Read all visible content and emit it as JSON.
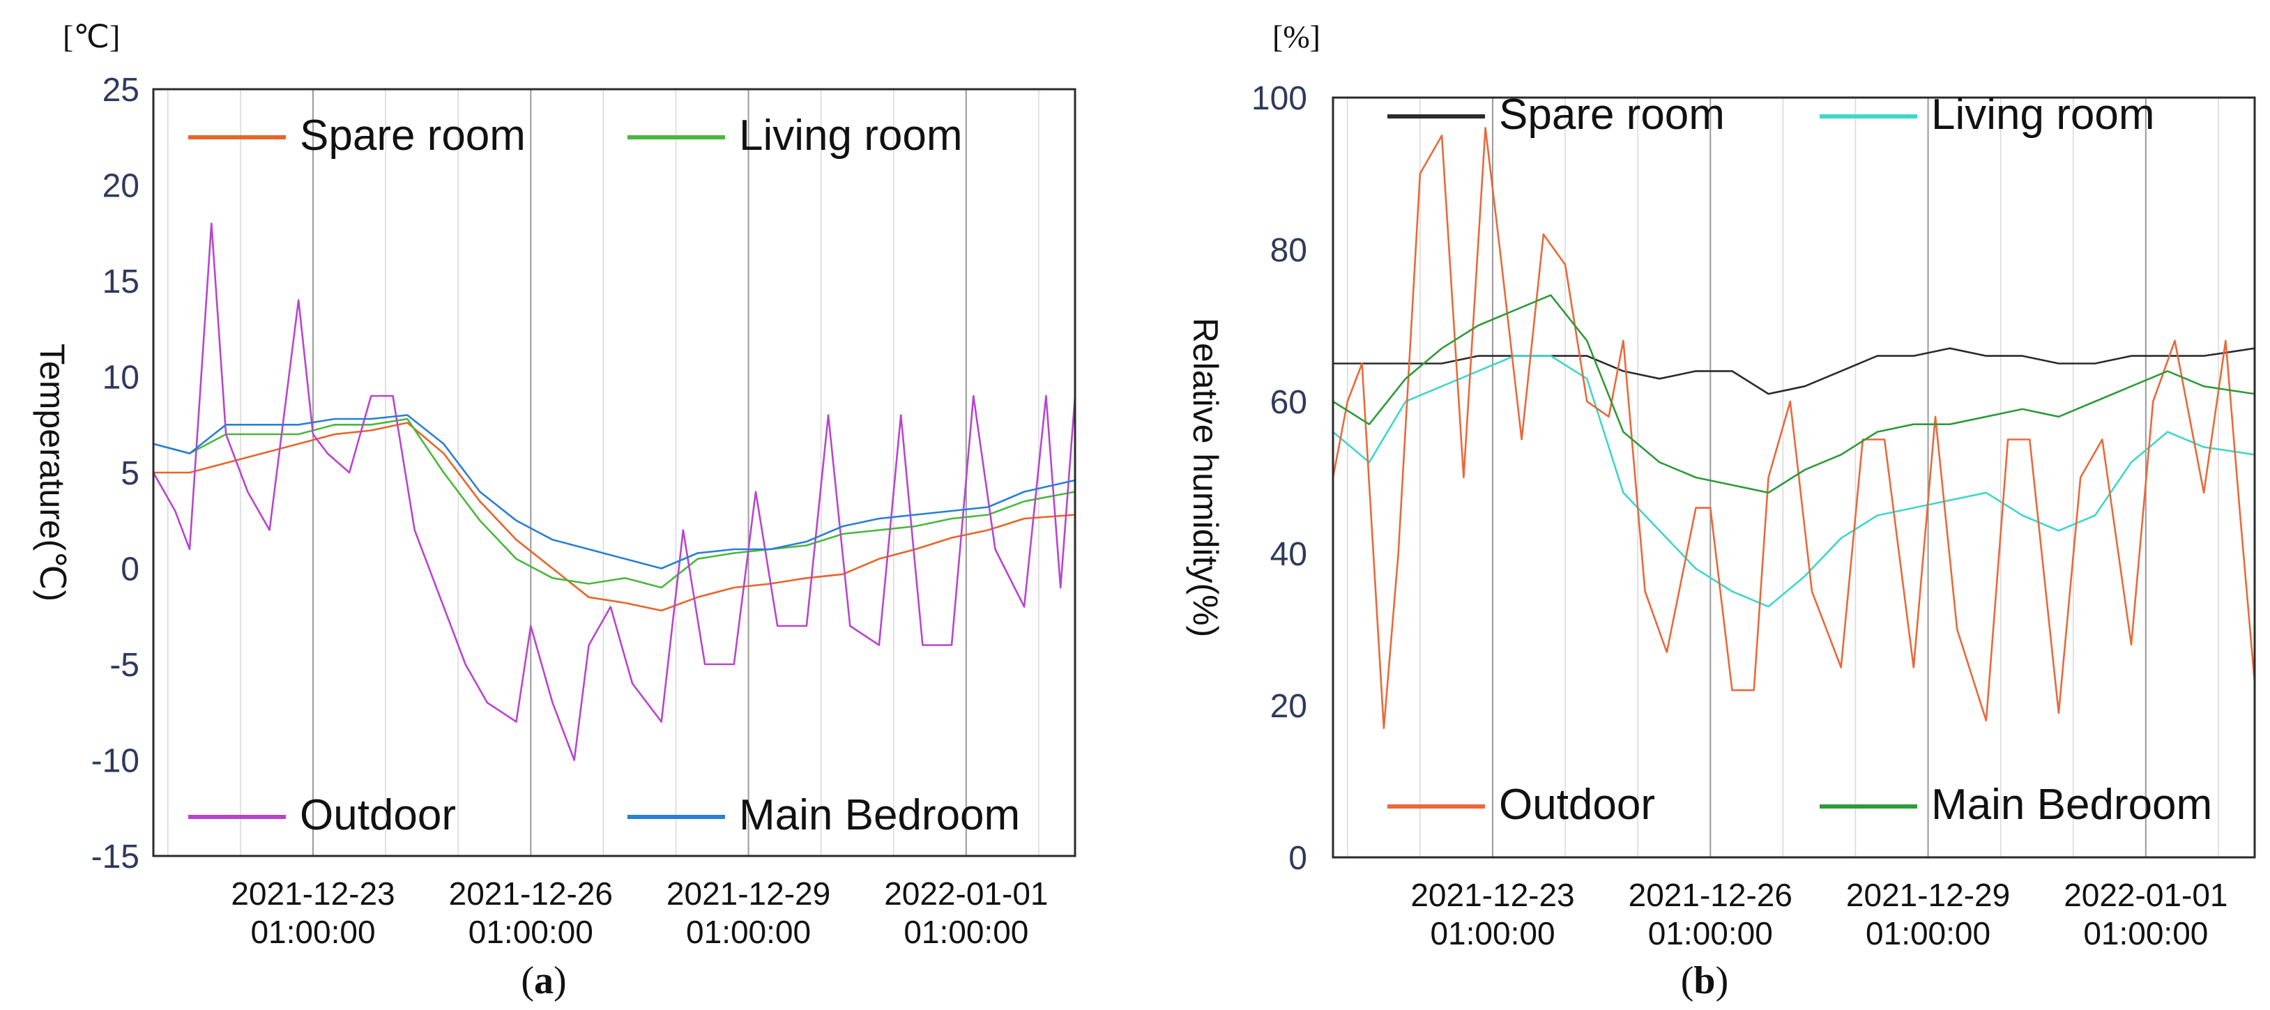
{
  "chart_data": [
    {
      "type": "line",
      "panel": "a",
      "panel_label_open": "(",
      "panel_label_letter": "a",
      "panel_label_close": ")",
      "unit_top": "[℃]",
      "ylabel": "Temperature(℃)",
      "xlabel": "",
      "ylim": [
        -15,
        25
      ],
      "yticks": [
        "25",
        "20",
        "15",
        "10",
        "5",
        "0",
        "-5",
        "-10",
        "-15"
      ],
      "ytick_values": [
        25,
        20,
        15,
        10,
        5,
        0,
        -5,
        -10,
        -15
      ],
      "x_range_days": [
        0,
        12.7
      ],
      "xticks": [
        {
          "day": 2.2,
          "line1": "2021-12-23",
          "line2": "01:00:00"
        },
        {
          "day": 5.2,
          "line1": "2021-12-26",
          "line2": "01:00:00"
        },
        {
          "day": 8.2,
          "line1": "2021-12-29",
          "line2": "01:00:00"
        },
        {
          "day": 11.2,
          "line1": "2022-01-01",
          "line2": "01:00:00"
        }
      ],
      "series": [
        {
          "name": "Spare room",
          "color": "#e8642a",
          "legend_pos": "top-left",
          "x": [
            0,
            0.5,
            1,
            1.5,
            2,
            2.5,
            3,
            3.5,
            4,
            4.5,
            5,
            5.5,
            6,
            6.5,
            7,
            7.5,
            8,
            8.5,
            9,
            9.5,
            10,
            10.5,
            11,
            11.5,
            12,
            12.7
          ],
          "y": [
            5,
            5,
            5.5,
            6,
            6.5,
            7,
            7.2,
            7.6,
            6,
            3.5,
            1.5,
            0,
            -1.5,
            -1.8,
            -2.2,
            -1.5,
            -1,
            -0.8,
            -0.5,
            -0.3,
            0.5,
            1,
            1.6,
            2,
            2.6,
            2.8
          ]
        },
        {
          "name": "Living room",
          "color": "#49b83c",
          "legend_pos": "top-right",
          "x": [
            0,
            0.5,
            1,
            1.5,
            2,
            2.5,
            3,
            3.5,
            4,
            4.5,
            5,
            5.5,
            6,
            6.5,
            7,
            7.5,
            8,
            8.5,
            9,
            9.5,
            10,
            10.5,
            11,
            11.5,
            12,
            12.7
          ],
          "y": [
            6.5,
            6,
            7,
            7,
            7,
            7.5,
            7.5,
            7.8,
            5,
            2.5,
            0.5,
            -0.5,
            -0.8,
            -0.5,
            -1,
            0.5,
            0.8,
            1,
            1.2,
            1.8,
            2,
            2.2,
            2.6,
            2.8,
            3.5,
            4
          ]
        },
        {
          "name": "Outdoor",
          "color": "#b845cf",
          "legend_pos": "bottom-left",
          "x": [
            0,
            0.3,
            0.5,
            0.8,
            1,
            1.3,
            1.6,
            2,
            2.2,
            2.4,
            2.7,
            3,
            3.3,
            3.6,
            4,
            4.3,
            4.6,
            5,
            5.2,
            5.5,
            5.8,
            6,
            6.3,
            6.6,
            7,
            7.3,
            7.6,
            8,
            8.3,
            8.6,
            9,
            9.3,
            9.6,
            10,
            10.3,
            10.6,
            11,
            11.3,
            11.6,
            12,
            12.3,
            12.5,
            12.7
          ],
          "y": [
            5,
            3,
            1,
            18,
            7,
            4,
            2,
            14,
            7,
            6,
            5,
            9,
            9,
            2,
            -2,
            -5,
            -7,
            -8,
            -3,
            -7,
            -10,
            -4,
            -2,
            -6,
            -8,
            2,
            -5,
            -5,
            4,
            -3,
            -3,
            8,
            -3,
            -4,
            8,
            -4,
            -4,
            9,
            1,
            -2,
            9,
            -1,
            9
          ]
        },
        {
          "name": "Main Bedroom",
          "color": "#2a7fd4",
          "legend_pos": "bottom-right",
          "x": [
            0,
            0.5,
            1,
            1.5,
            2,
            2.5,
            3,
            3.5,
            4,
            4.5,
            5,
            5.5,
            6,
            6.5,
            7,
            7.5,
            8,
            8.5,
            9,
            9.5,
            10,
            10.5,
            11,
            11.5,
            12,
            12.7
          ],
          "y": [
            6.5,
            6,
            7.5,
            7.5,
            7.5,
            7.8,
            7.8,
            8,
            6.5,
            4,
            2.5,
            1.5,
            1,
            0.5,
            0,
            0.8,
            1,
            1,
            1.4,
            2.2,
            2.6,
            2.8,
            3,
            3.2,
            4,
            4.6
          ]
        }
      ]
    },
    {
      "type": "line",
      "panel": "b",
      "panel_label_open": "(",
      "panel_label_letter": "b",
      "panel_label_close": ")",
      "unit_top": "[%]",
      "ylabel": "Relative humidity(%)",
      "xlabel": "",
      "ylim": [
        0,
        100
      ],
      "yticks": [
        "100",
        "80",
        "60",
        "40",
        "20",
        "0"
      ],
      "ytick_values": [
        100,
        80,
        60,
        40,
        20,
        0
      ],
      "x_range_days": [
        0,
        12.7
      ],
      "xticks": [
        {
          "day": 2.2,
          "line1": "2021-12-23",
          "line2": "01:00:00"
        },
        {
          "day": 5.2,
          "line1": "2021-12-26",
          "line2": "01:00:00"
        },
        {
          "day": 8.2,
          "line1": "2021-12-29",
          "line2": "01:00:00"
        },
        {
          "day": 11.2,
          "line1": "2022-01-01",
          "line2": "01:00:00"
        }
      ],
      "series": [
        {
          "name": "Spare room",
          "color": "#2b2b2b",
          "legend_pos": "top-left",
          "x": [
            0,
            0.5,
            1,
            1.5,
            2,
            2.5,
            3,
            3.5,
            4,
            4.5,
            5,
            5.5,
            6,
            6.5,
            7,
            7.5,
            8,
            8.5,
            9,
            9.5,
            10,
            10.5,
            11,
            11.5,
            12,
            12.7
          ],
          "y": [
            65,
            65,
            65,
            65,
            66,
            66,
            66,
            66,
            64,
            63,
            64,
            64,
            61,
            62,
            64,
            66,
            66,
            67,
            66,
            66,
            65,
            65,
            66,
            66,
            66,
            67
          ]
        },
        {
          "name": "Living room",
          "color": "#3fd6cc",
          "legend_pos": "top-right",
          "x": [
            0,
            0.5,
            1,
            1.5,
            2,
            2.5,
            3,
            3.5,
            4,
            4.5,
            5,
            5.5,
            6,
            6.5,
            7,
            7.5,
            8,
            8.5,
            9,
            9.5,
            10,
            10.5,
            11,
            11.5,
            12,
            12.7
          ],
          "y": [
            56,
            52,
            60,
            62,
            64,
            66,
            66,
            63,
            48,
            43,
            38,
            35,
            33,
            37,
            42,
            45,
            46,
            47,
            48,
            45,
            43,
            45,
            52,
            56,
            54,
            53
          ]
        },
        {
          "name": "Outdoor",
          "color": "#e8693a",
          "legend_pos": "bottom-left",
          "x": [
            0,
            0.2,
            0.4,
            0.7,
            0.9,
            1.2,
            1.5,
            1.8,
            2.1,
            2.3,
            2.6,
            2.9,
            3.2,
            3.5,
            3.8,
            4,
            4.3,
            4.6,
            5,
            5.2,
            5.5,
            5.8,
            6,
            6.3,
            6.6,
            7,
            7.3,
            7.6,
            8,
            8.3,
            8.6,
            9,
            9.3,
            9.6,
            10,
            10.3,
            10.6,
            11,
            11.3,
            11.6,
            12,
            12.3,
            12.5,
            12.7
          ],
          "y": [
            50,
            60,
            65,
            17,
            40,
            90,
            95,
            50,
            96,
            80,
            55,
            82,
            78,
            60,
            58,
            68,
            35,
            27,
            46,
            46,
            22,
            22,
            50,
            60,
            35,
            25,
            55,
            55,
            25,
            58,
            30,
            18,
            55,
            55,
            19,
            50,
            55,
            28,
            60,
            68,
            48,
            68,
            45,
            23
          ]
        },
        {
          "name": "Main Bedroom",
          "color": "#2e9a3a",
          "legend_pos": "bottom-right",
          "x": [
            0,
            0.5,
            1,
            1.5,
            2,
            2.5,
            3,
            3.5,
            4,
            4.5,
            5,
            5.5,
            6,
            6.5,
            7,
            7.5,
            8,
            8.5,
            9,
            9.5,
            10,
            10.5,
            11,
            11.5,
            12,
            12.7
          ],
          "y": [
            60,
            57,
            63,
            67,
            70,
            72,
            74,
            68,
            56,
            52,
            50,
            49,
            48,
            51,
            53,
            56,
            57,
            57,
            58,
            59,
            58,
            60,
            62,
            64,
            62,
            61
          ]
        }
      ]
    }
  ]
}
